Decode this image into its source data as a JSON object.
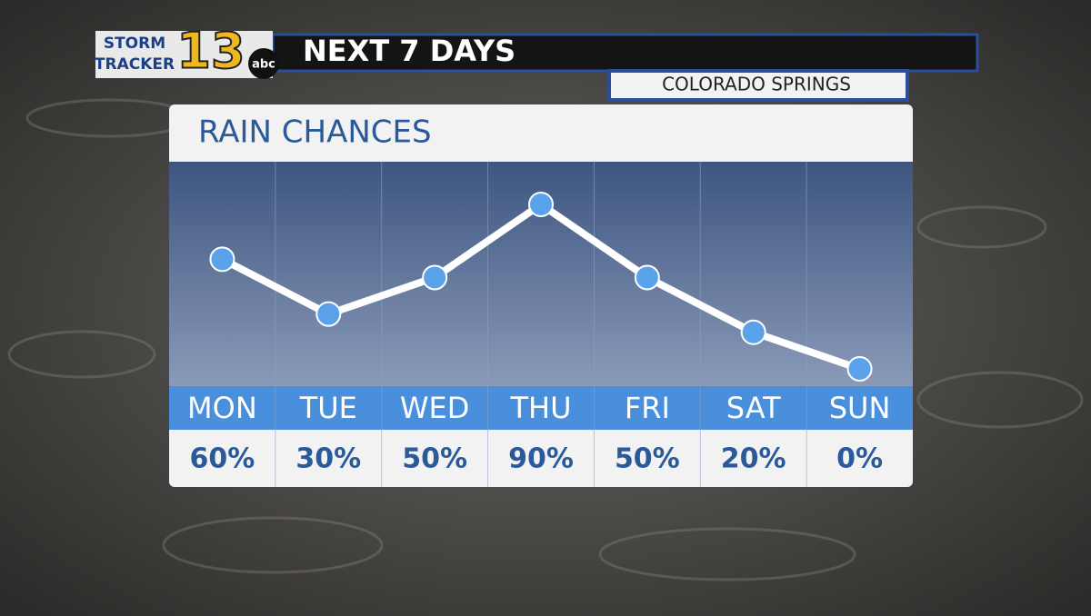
{
  "header": {
    "brand_top": "STORM",
    "brand_bottom": "TRACKER",
    "channel": "13",
    "network": "abc",
    "title": "NEXT 7 DAYS",
    "location": "COLORADO SPRINGS"
  },
  "chart_data": {
    "type": "line",
    "title": "RAIN CHANCES",
    "categories": [
      "MON",
      "TUE",
      "WED",
      "THU",
      "FRI",
      "SAT",
      "SUN"
    ],
    "values": [
      60,
      30,
      50,
      90,
      50,
      20,
      0
    ],
    "value_labels": [
      "60%",
      "30%",
      "50%",
      "90%",
      "50%",
      "20%",
      "0%"
    ],
    "color": "#ffffff",
    "marker_color": "#5aa2ea"
  }
}
